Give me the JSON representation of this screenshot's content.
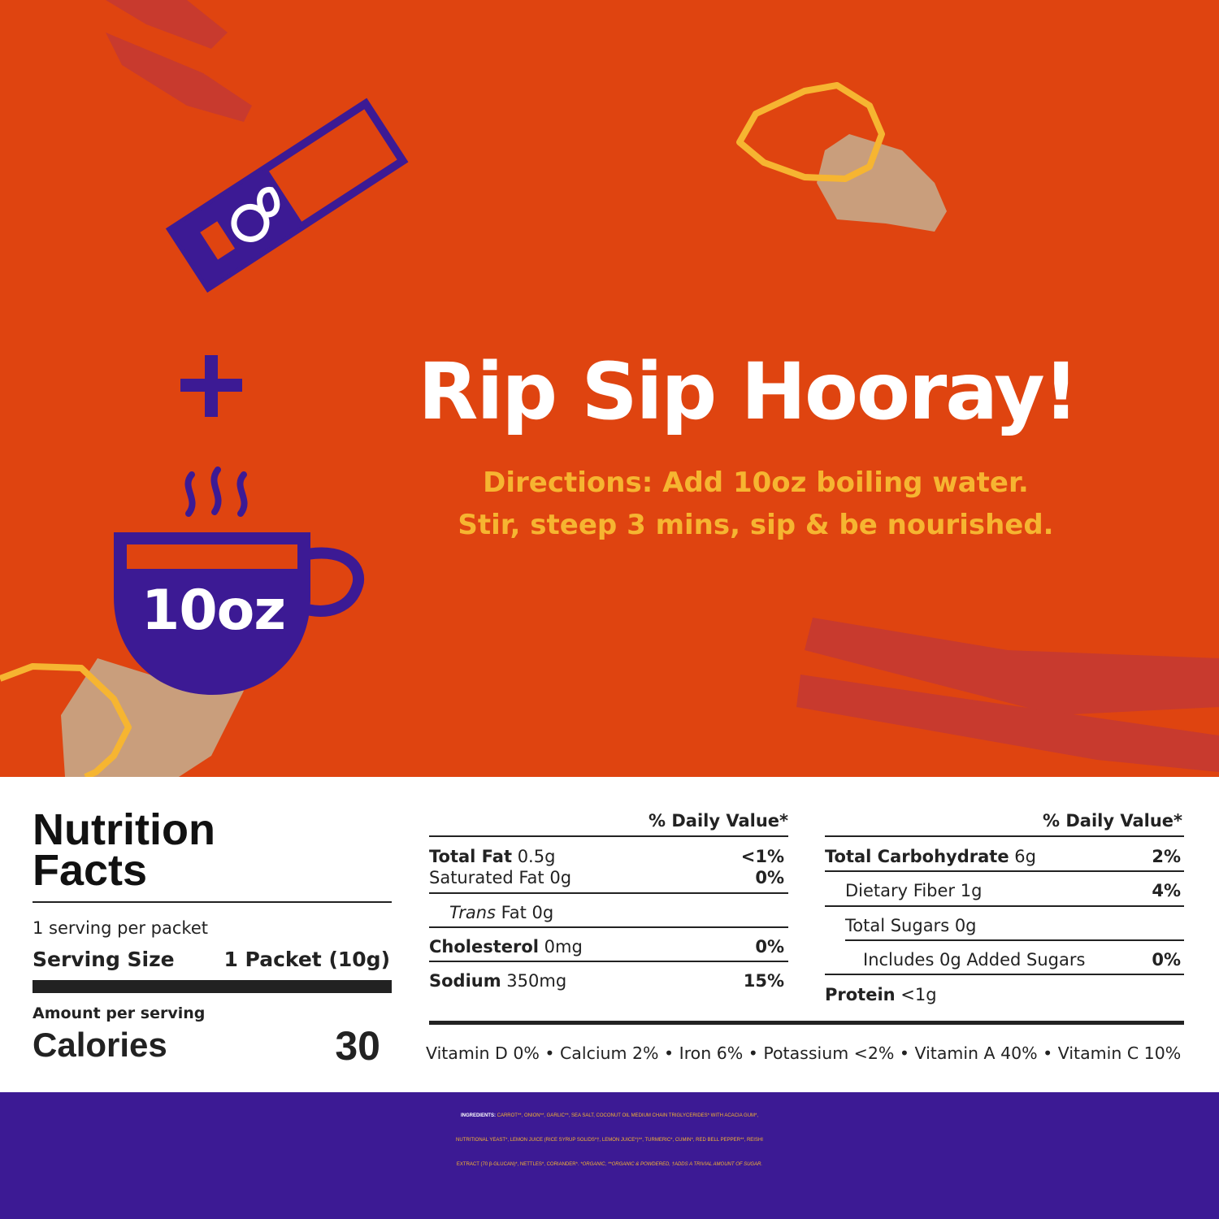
{
  "colors": {
    "background_orange": "#df4410",
    "accent_red": "#c83a2e",
    "accent_purple": "#3c1a94",
    "accent_yellow": "#f6b531",
    "accent_tan": "#c99e7c",
    "white": "#ffffff"
  },
  "icons": [
    "packet-icon",
    "plus-icon",
    "cup-icon",
    "steam-icon",
    "leaf-logo-icon"
  ],
  "hero": {
    "headline": "Rip Sip Hooray!",
    "directions_line1": "Directions: Add 10oz boiling water.",
    "directions_line2": "Stir, steep 3 mins, sip & be nourished.",
    "cup_label": "10oz"
  },
  "nutrition": {
    "title_line1": "Nutrition",
    "title_line2": "Facts",
    "servings_per": "1 serving per packet",
    "serving_size_label": "Serving Size",
    "serving_size_value": "1 Packet (10g)",
    "amount_per_serving": "Amount per serving",
    "calories_label": "Calories",
    "calories_value": "30",
    "dv_header": "% Daily Value*",
    "left_rows": [
      {
        "name": "Total Fat",
        "amount": " 0.5g",
        "dv": "<1%"
      },
      {
        "name": "Saturated Fat",
        "amount": " 0g",
        "dv": "0%"
      },
      {
        "name": "Trans",
        "amount": " Fat 0g",
        "dv": ""
      },
      {
        "name": "Cholesterol",
        "amount": " 0mg",
        "dv": "0%"
      },
      {
        "name": "Sodium",
        "amount": " 350mg",
        "dv": "15%"
      }
    ],
    "right_rows": [
      {
        "name": "Total Carbohydrate",
        "amount": " 6g",
        "dv": "2%"
      },
      {
        "name": "Dietary Fiber",
        "amount": " 1g",
        "dv": "4%"
      },
      {
        "name": "Total Sugars",
        "amount": " 0g",
        "dv": ""
      },
      {
        "name": "Includes 0g Added Sugars",
        "amount": "",
        "dv": "0%"
      },
      {
        "name": "Protein",
        "amount": " <1g",
        "dv": ""
      }
    ],
    "vitamins": "Vitamin D 0% • Calcium 2% • Iron 6% • Potassium <2% • Vitamin A 40% • Vitamin C 10%"
  },
  "ingredients": {
    "label": "INGREDIENTS:",
    "line1": " CARROT**, ONION**, GARLIC**, SEA SALT, COCONUT OIL MEDIUM CHAIN TRIGLYCERIDES* WITH ACACIA GUM*,",
    "line2": "NUTRITIONAL YEAST*, LEMON JUICE (RICE SYRUP SOLIDS*†, LEMON JUICE*)**, TURMERIC*, CUMIN*, RED BELL PEPPER**, REISHI",
    "line3": "EXTRACT (70 β-GLUCAN)*, NETTLES*, CORIANDER*.",
    "line3_italic": " *ORGANIC, **ORGANIC & POWDERED, †ADDS A TRIVIAL AMOUNT OF SUGAR."
  }
}
